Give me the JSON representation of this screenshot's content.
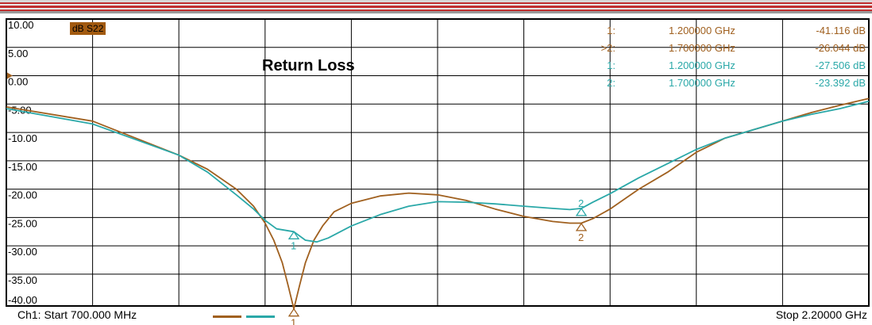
{
  "chart_data": {
    "type": "line",
    "title": "Return Loss",
    "parameter_label": "dB S22",
    "ylim": [
      -40,
      10
    ],
    "xlim_mhz": [
      700,
      2200
    ],
    "y_ticks": [
      "10.00",
      "5.00",
      "0.00",
      "-5.00",
      "-10.00",
      "-15.00",
      "-20.00",
      "-25.00",
      "-30.00",
      "-35.00",
      "-40.00"
    ],
    "grid": true,
    "reference_level": 0,
    "series": [
      {
        "color": "#a0601f",
        "x_mhz": [
          700,
          850,
          1000,
          1050,
          1100,
          1130,
          1150,
          1165,
          1180,
          1190,
          1200,
          1210,
          1220,
          1235,
          1250,
          1270,
          1300,
          1350,
          1400,
          1450,
          1500,
          1550,
          1600,
          1650,
          1680,
          1700,
          1720,
          1750,
          1800,
          1850,
          1900,
          1950,
          2000,
          2050,
          2100,
          2150,
          2200
        ],
        "y_db": [
          -5.5,
          -8,
          -14,
          -16.5,
          -20,
          -23,
          -26,
          -29,
          -33,
          -37,
          -41.1,
          -37,
          -33,
          -29,
          -26.5,
          -24,
          -22.5,
          -21.2,
          -20.7,
          -21,
          -22,
          -23.5,
          -24.8,
          -25.7,
          -26,
          -26,
          -25.2,
          -23.5,
          -20,
          -17,
          -13.5,
          -11,
          -9.5,
          -8,
          -6.5,
          -5.2,
          -4
        ]
      },
      {
        "color": "#2aa8a8",
        "x_mhz": [
          700,
          850,
          1000,
          1050,
          1100,
          1130,
          1150,
          1170,
          1200,
          1220,
          1240,
          1260,
          1300,
          1350,
          1400,
          1450,
          1500,
          1550,
          1600,
          1650,
          1680,
          1700,
          1720,
          1750,
          1800,
          1850,
          1900,
          1950,
          2000,
          2050,
          2100,
          2150,
          2200
        ],
        "y_db": [
          -5.8,
          -8.5,
          -14,
          -17,
          -21,
          -23.5,
          -25.5,
          -27,
          -27.5,
          -29,
          -29.3,
          -28.6,
          -26.5,
          -24.5,
          -23,
          -22.2,
          -22.3,
          -22.6,
          -23,
          -23.4,
          -23.6,
          -23.4,
          -22.3,
          -20.8,
          -18,
          -15.5,
          -13,
          -11,
          -9.5,
          -8,
          -6.8,
          -5.8,
          -4.5
        ]
      }
    ],
    "markers": [
      {
        "series": 0,
        "label": "1",
        "x_mhz": 1200,
        "y_db": -41.116
      },
      {
        "series": 0,
        "label": "2",
        "x_mhz": 1700,
        "y_db": -26.044
      },
      {
        "series": 1,
        "label": "1",
        "x_mhz": 1200,
        "y_db": -27.506
      },
      {
        "series": 1,
        "label": "2",
        "x_mhz": 1700,
        "y_db": -23.392
      }
    ],
    "marker_table": [
      {
        "num": "1:",
        "freq": "1.200000 GHz",
        "value": "-41.116 dB",
        "color": "#a0601f"
      },
      {
        "num": ">2:",
        "freq": "1.700000 GHz",
        "value": "-26.044 dB",
        "color": "#a0601f"
      },
      {
        "num": "1:",
        "freq": "1.200000 GHz",
        "value": "-27.506 dB",
        "color": "#2aa8a8"
      },
      {
        "num": "2:",
        "freq": "1.700000 GHz",
        "value": "-23.392 dB",
        "color": "#2aa8a8"
      }
    ]
  },
  "footer": {
    "start": "Ch1: Start  700.000 MHz",
    "stop": "Stop  2.20000 GHz"
  }
}
